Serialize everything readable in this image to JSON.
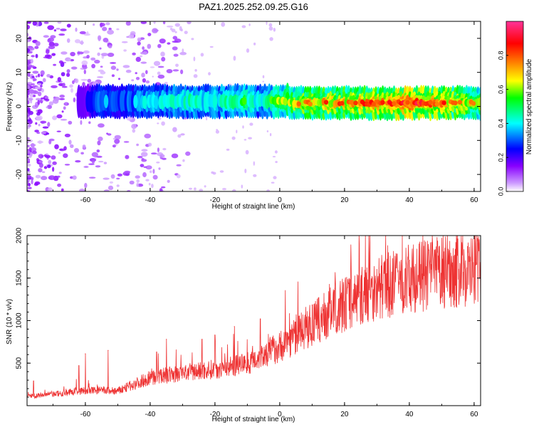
{
  "title": "PAZ1.2025.252.09.25.G16",
  "chart_data": [
    {
      "type": "heatmap",
      "xlabel": "Height of straight line (km)",
      "ylabel": "Frequency (Hz)",
      "xlim": [
        -78,
        62
      ],
      "ylim": [
        -25,
        25
      ],
      "xticks": [
        -60,
        -40,
        -20,
        0,
        20,
        40,
        60
      ],
      "yticks": [
        -20,
        -10,
        0,
        10,
        20
      ],
      "colorbar": {
        "label": "Normalized spectral amplitude",
        "range": [
          0.0,
          1.0
        ],
        "ticks": [
          0.0,
          0.2,
          0.4,
          0.6,
          0.8
        ],
        "tick_labels": [
          "0.0",
          "0.2",
          "0.4",
          "0.6",
          "0.8"
        ],
        "colors": [
          "#ffffff",
          "#cc99ff",
          "#8800ff",
          "#0000ff",
          "#00ffff",
          "#00ff00",
          "#ffff00",
          "#ff8800",
          "#ff0000",
          "#ff3399"
        ]
      },
      "ridge": [
        {
          "x": -60,
          "y": 1.5,
          "amp": 0.15
        },
        {
          "x": -55,
          "y": 0.0,
          "amp": 0.3
        },
        {
          "x": -50,
          "y": -3.0,
          "amp": 0.25
        },
        {
          "x": -46,
          "y": 0.5,
          "amp": 0.3
        },
        {
          "x": -40,
          "y": 0.5,
          "amp": 0.35
        },
        {
          "x": -35,
          "y": -0.5,
          "amp": 0.35
        },
        {
          "x": -30,
          "y": 0.0,
          "amp": 0.4
        },
        {
          "x": -20,
          "y": 0.5,
          "amp": 0.4
        },
        {
          "x": -10,
          "y": 0.5,
          "amp": 0.45
        },
        {
          "x": -6,
          "y": 2.5,
          "amp": 0.35
        },
        {
          "x": 0,
          "y": -0.5,
          "amp": 0.55
        },
        {
          "x": 10,
          "y": 0.0,
          "amp": 0.7
        },
        {
          "x": 20,
          "y": 0.5,
          "amp": 0.7
        },
        {
          "x": 30,
          "y": 0.0,
          "amp": 0.75
        },
        {
          "x": 40,
          "y": 0.0,
          "amp": 0.85
        },
        {
          "x": 50,
          "y": 0.5,
          "amp": 0.75
        },
        {
          "x": 62,
          "y": 1.0,
          "amp": 0.6
        }
      ]
    },
    {
      "type": "line",
      "xlabel": "Height of straight line (km)",
      "ylabel": "SNR (10 * v/v)",
      "xlim": [
        -78,
        62
      ],
      "ylim": [
        0,
        2000
      ],
      "xticks": [
        -60,
        -40,
        -20,
        0,
        20,
        40,
        60
      ],
      "yticks": [
        500,
        1000,
        1500,
        2000
      ],
      "color": "#ee3333",
      "series": [
        {
          "name": "SNR",
          "trend_x": [
            -78,
            -68,
            -62,
            -56,
            -50,
            -45,
            -40,
            -30,
            -20,
            -10,
            0,
            10,
            20,
            30,
            40,
            50,
            55,
            62
          ],
          "trend_y": [
            110,
            140,
            170,
            180,
            170,
            250,
            330,
            380,
            430,
            500,
            700,
            950,
            1200,
            1380,
            1490,
            1570,
            1590,
            1580
          ],
          "peaks_x": [
            -76,
            -62,
            -60,
            -53,
            -38,
            -35,
            -24,
            -20,
            -14,
            -6,
            0,
            3,
            10,
            17,
            23,
            30,
            36,
            40,
            46,
            52,
            55,
            58
          ],
          "peaks_y": [
            290,
            470,
            610,
            650,
            630,
            780,
            780,
            830,
            930,
            1020,
            740,
            1080,
            1180,
            1380,
            1430,
            1600,
            1620,
            1710,
            1830,
            1840,
            1960,
            1870
          ]
        }
      ]
    }
  ]
}
